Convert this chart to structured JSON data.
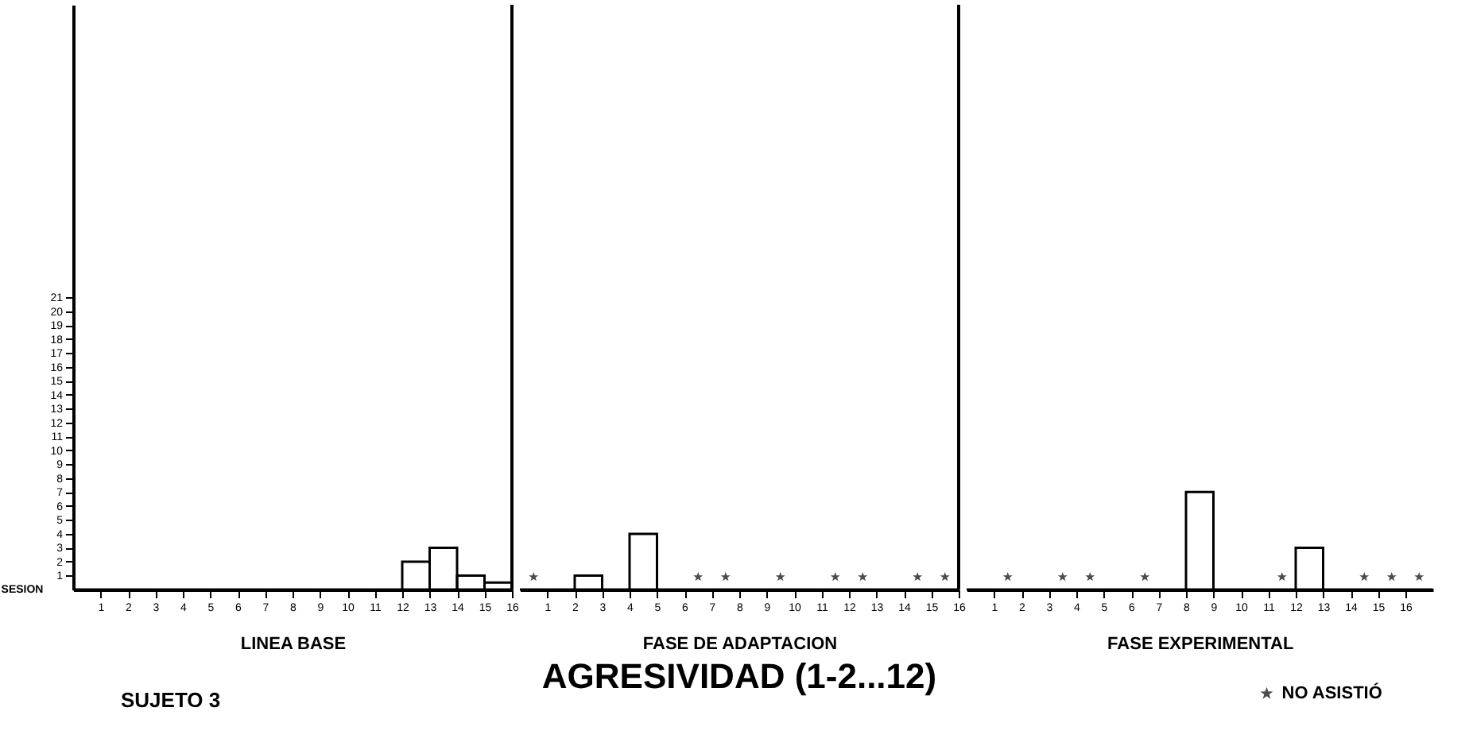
{
  "chart_data": [
    {
      "type": "histogram",
      "xlabel": "LINEA BASE",
      "annotations": [
        "SESION",
        "SUJETO 3"
      ],
      "bins": [
        0,
        1,
        2,
        3,
        4,
        5,
        6,
        7,
        8,
        9,
        10,
        11,
        12,
        13,
        14,
        15,
        16
      ],
      "values": [
        0,
        0,
        0,
        0,
        0,
        0,
        0,
        0,
        0,
        0,
        0,
        0,
        2,
        3,
        1,
        0.5
      ],
      "color": "#000000",
      "ref_lines": [
        {
          "axis": "x",
          "value": 16
        }
      ],
      "xlim": [
        0,
        16
      ],
      "xticks": [
        1,
        2,
        3,
        4,
        5,
        6,
        7,
        8,
        9,
        10,
        11,
        12,
        13,
        14,
        15,
        16
      ],
      "ylim": [
        0,
        42
      ],
      "yticks": [
        1,
        2,
        3,
        4,
        5,
        6,
        7,
        8,
        9,
        10,
        11,
        12,
        13,
        14,
        15,
        16,
        17,
        18,
        19,
        20,
        21
      ]
    },
    {
      "type": "histogram",
      "title": "AGRESIVIDAD (1-2...12)",
      "xlabel": "FASE DE ADAPTACION",
      "bins": [
        0,
        1,
        2,
        3,
        4,
        5,
        6,
        7,
        8,
        9,
        10,
        11,
        12,
        13,
        14,
        15,
        16
      ],
      "values": [
        0,
        0,
        1,
        0,
        4,
        0,
        0,
        0,
        0,
        0,
        0,
        0,
        0,
        0,
        0,
        0
      ],
      "color": "#000000",
      "series": [
        {
          "type": "scatter",
          "color": "#000000",
          "x": [
            0.5,
            6.5,
            7.5,
            9.5,
            11.5,
            12.5,
            14.5,
            15.5
          ],
          "values": [
            0.9,
            0.9,
            0.9,
            0.9,
            0.9,
            0.9,
            0.9,
            0.9
          ]
        }
      ],
      "marker": "star",
      "ref_lines": [
        {
          "axis": "x",
          "value": 16
        }
      ],
      "xlim": [
        0,
        16
      ],
      "xticks": [
        1,
        2,
        3,
        4,
        5,
        6,
        7,
        8,
        9,
        10,
        11,
        12,
        13,
        14,
        15,
        16
      ],
      "ylim": [
        0,
        42
      ],
      "tick_labels": "x"
    },
    {
      "type": "histogram",
      "xlabel": "FASE EXPERIMENTAL",
      "bins": [
        0,
        1,
        2,
        3,
        4,
        5,
        6,
        7,
        8,
        9,
        10,
        11,
        12,
        13,
        14,
        15,
        16,
        17
      ],
      "values": [
        0,
        0,
        0,
        0,
        0,
        0,
        0,
        0,
        7,
        0,
        0,
        0,
        3,
        0,
        0,
        0,
        0
      ],
      "color": "#000000",
      "series": [
        {
          "name": "NO ASISTIÓ",
          "type": "scatter",
          "color": "#000000",
          "x": [
            1.5,
            3.5,
            4.5,
            6.5,
            11.5,
            14.5,
            15.5,
            16.5
          ],
          "values": [
            0.9,
            0.9,
            0.9,
            0.9,
            0.9,
            0.9,
            0.9,
            0.9
          ]
        }
      ],
      "marker": "star",
      "legend": "bottom right",
      "xlim": [
        0,
        17
      ],
      "xticks": [
        1,
        2,
        3,
        4,
        5,
        6,
        7,
        8,
        9,
        10,
        11,
        12,
        13,
        14,
        15,
        16
      ],
      "ylim": [
        0,
        42
      ],
      "tick_labels": "x"
    }
  ]
}
